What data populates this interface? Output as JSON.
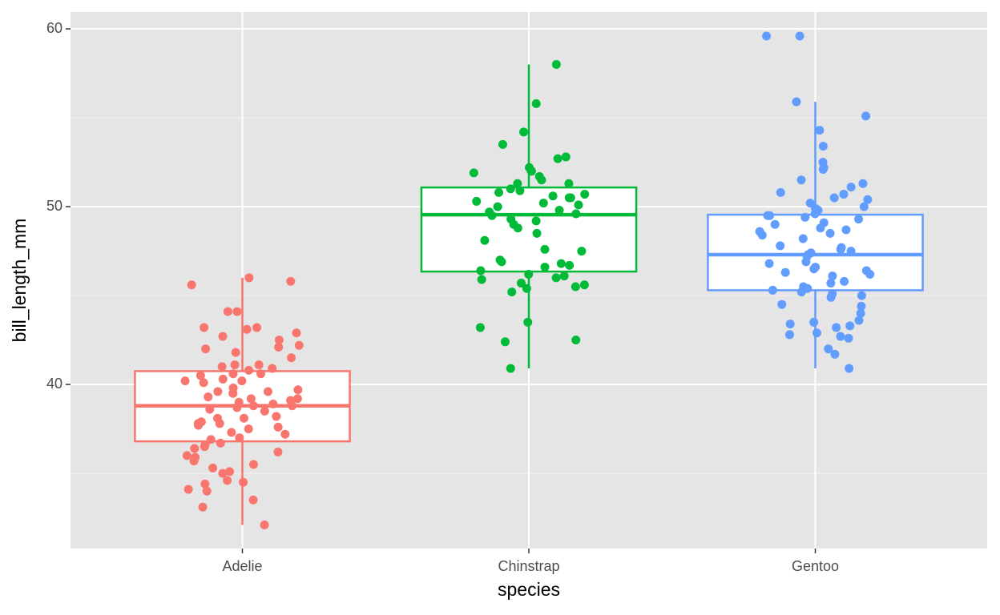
{
  "chart_data": {
    "type": "boxplot",
    "x_label": "species",
    "y_label": "bill_length_mm",
    "categories": [
      "Adelie",
      "Chinstrap",
      "Gentoo"
    ],
    "ylim": [
      30.77,
      60.95
    ],
    "yticks": [
      40,
      50,
      60
    ],
    "yminor_ticks": [
      35,
      45,
      55
    ],
    "grid": true,
    "boxes": [
      {
        "color": "#F8766D",
        "min": 32.1,
        "q1": 36.8,
        "median": 38.8,
        "q3": 40.75,
        "max": 46.0,
        "points": [
          45.8,
          45.6,
          46.0,
          44.1,
          44.1,
          43.2,
          43.2,
          42.7,
          43.1,
          42.9,
          42.5,
          42.0,
          42.2,
          42.1,
          41.8,
          41.5,
          41.1,
          41.1,
          41.0,
          40.9,
          40.8,
          40.6,
          40.6,
          40.5,
          40.3,
          40.2,
          40.2,
          40.1,
          39.8,
          39.7,
          39.6,
          39.6,
          39.5,
          39.3,
          39.2,
          39.2,
          39.1,
          39.0,
          38.9,
          38.8,
          38.8,
          38.7,
          38.6,
          38.5,
          38.2,
          38.1,
          38.1,
          37.9,
          37.8,
          37.8,
          37.7,
          37.6,
          37.5,
          37.3,
          37.2,
          37.0,
          36.9,
          36.7,
          36.6,
          36.5,
          36.4,
          36.2,
          36.0,
          35.9,
          35.7,
          35.5,
          35.3,
          35.1,
          35.0,
          34.6,
          34.5,
          34.4,
          34.1,
          34.0,
          33.5,
          33.1,
          32.1
        ]
      },
      {
        "color": "#00BA38",
        "min": 40.9,
        "q1": 46.35,
        "median": 49.55,
        "q3": 51.08,
        "max": 58.0,
        "points": [
          58.0,
          55.8,
          54.2,
          53.5,
          52.8,
          52.7,
          52.2,
          52.0,
          52.0,
          51.9,
          51.7,
          51.5,
          51.3,
          51.3,
          51.0,
          50.9,
          50.8,
          50.7,
          50.6,
          50.5,
          50.5,
          50.3,
          50.2,
          50.1,
          50.0,
          49.8,
          49.7,
          49.6,
          49.5,
          49.3,
          49.2,
          49.0,
          48.8,
          48.5,
          48.1,
          47.6,
          47.5,
          47.0,
          46.9,
          46.8,
          46.7,
          46.6,
          46.4,
          46.2,
          46.1,
          46.0,
          45.9,
          45.7,
          45.6,
          45.5,
          45.4,
          45.2,
          43.5,
          43.2,
          42.5,
          42.4,
          40.9
        ]
      },
      {
        "color": "#619CFF",
        "min": 40.9,
        "q1": 45.3,
        "median": 47.3,
        "q3": 49.55,
        "max": 55.9,
        "points": [
          59.6,
          59.6,
          55.9,
          55.1,
          54.3,
          53.4,
          52.5,
          52.2,
          52.1,
          51.5,
          51.3,
          51.1,
          50.8,
          50.7,
          50.5,
          50.4,
          50.2,
          50.0,
          49.9,
          49.8,
          49.6,
          49.5,
          49.5,
          49.4,
          49.3,
          49.1,
          49.0,
          48.8,
          48.7,
          48.6,
          48.5,
          48.4,
          48.2,
          47.8,
          47.7,
          47.6,
          47.5,
          47.4,
          47.3,
          47.2,
          46.9,
          46.8,
          46.6,
          46.5,
          46.4,
          46.3,
          46.2,
          46.1,
          45.8,
          45.7,
          45.5,
          45.4,
          45.3,
          45.2,
          45.1,
          45.0,
          44.9,
          44.5,
          44.4,
          44.0,
          43.6,
          43.5,
          43.4,
          43.3,
          43.2,
          42.9,
          42.8,
          42.7,
          42.6,
          42.0,
          41.7,
          40.9
        ]
      }
    ]
  }
}
